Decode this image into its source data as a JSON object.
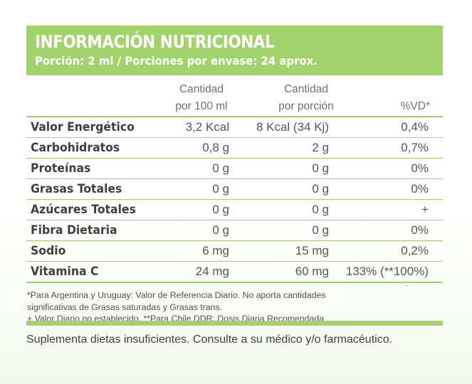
{
  "title": "INFORMACIÓN NUTRICIONAL",
  "serving": "Porción: 2 ml / Porciones por envase: 24 aprox.",
  "columns": {
    "per100_line1": "Cantidad",
    "per100_line2": "por 100 ml",
    "perserving_line1": "Cantidad",
    "perserving_line2": "por porción",
    "dv": "%VD*"
  },
  "rows": [
    {
      "label": "Valor Energético",
      "per100": "3,2 Kcal",
      "perserving": "8 Kcal (34 Kj)",
      "dv": "0,4%"
    },
    {
      "label": "Carbohidratos",
      "per100": "0,8 g",
      "perserving": "2 g",
      "dv": "0,7%"
    },
    {
      "label": "Proteínas",
      "per100": "0 g",
      "perserving": "0 g",
      "dv": "0%"
    },
    {
      "label": "Grasas Totales",
      "per100": "0 g",
      "perserving": "0 g",
      "dv": "0%"
    },
    {
      "label": "Azúcares Totales",
      "per100": "0 g",
      "perserving": "0 g",
      "dv": "+"
    },
    {
      "label": "Fibra Dietaria",
      "per100": "0 g",
      "perserving": "0 g",
      "dv": "0%"
    },
    {
      "label": "Sodio",
      "per100": "6 mg",
      "perserving": "15 mg",
      "dv": "0,2%"
    },
    {
      "label": "Vitamina C",
      "per100": "24 mg",
      "perserving": "60 mg",
      "dv": "133% (**100%)"
    }
  ],
  "notes": [
    "*Para Argentina y Uruguay: Valor de Referencia Diario. No aporta cantidades",
    "significativas de Grasas saturadas y Grasas trans.",
    "+ Valor Diario no establecido.  **Para Chile DDR: Dosis Diaria Recomendada"
  ],
  "footer": "Suplementa dietas insuficientes. Consulte a su médico y/o farmacéutico.",
  "colors": {
    "accent_green": "#a2d36b",
    "text_dark": "#3f3f3f",
    "text_gray": "#6f6f6f"
  }
}
